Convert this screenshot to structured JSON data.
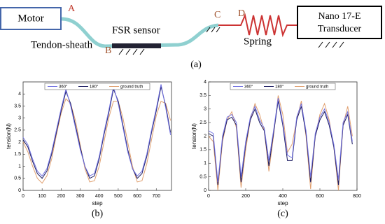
{
  "diagram": {
    "motor": "Motor",
    "label_a": "A",
    "tendon": "Tendon-sheath",
    "fsr": "FSR sensor",
    "label_b": "B",
    "label_c": "C",
    "label_d": "D",
    "spring": "Spring",
    "transducer_1": "Nano 17-E",
    "transducer_2": "Transducer",
    "panel": "(a)"
  },
  "chart_data": [
    {
      "type": "line",
      "panel_label": "(b)",
      "xlabel": "step",
      "ylabel": "tension(N)",
      "legend": "upper center",
      "x": [
        0,
        25,
        50,
        75,
        100,
        125,
        150,
        175,
        200,
        225,
        250,
        275,
        300,
        325,
        350,
        375,
        400,
        425,
        450,
        475,
        500,
        525,
        550,
        575,
        600,
        625,
        650,
        675,
        700,
        725,
        750,
        775
      ],
      "series": [
        {
          "name": "360°",
          "color": "#7070e0",
          "values": [
            2.2,
            1.9,
            1.3,
            0.8,
            0.6,
            0.9,
            1.6,
            2.5,
            3.4,
            4.2,
            3.5,
            2.6,
            1.7,
            1.0,
            0.6,
            0.7,
            1.4,
            2.4,
            3.3,
            4.3,
            3.6,
            2.6,
            1.6,
            0.9,
            0.6,
            0.8,
            1.5,
            2.5,
            3.4,
            4.4,
            3.4,
            2.3
          ]
        },
        {
          "name": "180°",
          "color": "#1a1a60",
          "values": [
            2.1,
            1.8,
            1.2,
            0.7,
            0.5,
            0.8,
            1.5,
            2.4,
            3.3,
            4.1,
            3.6,
            2.7,
            1.8,
            1.0,
            0.5,
            0.6,
            1.3,
            2.3,
            3.2,
            4.2,
            3.7,
            2.7,
            1.7,
            0.9,
            0.5,
            0.7,
            1.4,
            2.4,
            3.3,
            4.3,
            3.5,
            2.4
          ]
        },
        {
          "name": "ground truth",
          "color": "#e0a070",
          "values": [
            2.0,
            1.6,
            1.0,
            0.5,
            0.3,
            0.6,
            1.3,
            2.3,
            3.2,
            3.8,
            3.6,
            2.9,
            1.9,
            0.9,
            0.35,
            0.4,
            1.0,
            2.0,
            3.0,
            3.7,
            3.7,
            3.0,
            2.0,
            1.0,
            0.35,
            0.4,
            1.1,
            2.1,
            3.1,
            3.7,
            3.6,
            2.9
          ]
        }
      ],
      "xlim": [
        0,
        780
      ],
      "ylim": [
        0,
        4.5
      ],
      "xticks": [
        0,
        100,
        200,
        300,
        400,
        500,
        600,
        700
      ],
      "yticks": [
        0,
        0.5,
        1,
        1.5,
        2,
        2.5,
        3,
        3.5,
        4
      ]
    },
    {
      "type": "line",
      "panel_label": "(c)",
      "xlabel": "step",
      "ylabel": "tension(N)",
      "legend": "upper center",
      "x": [
        0,
        25,
        50,
        75,
        100,
        125,
        150,
        175,
        200,
        225,
        250,
        275,
        300,
        325,
        350,
        375,
        400,
        425,
        450,
        475,
        500,
        525,
        550,
        575,
        600,
        625,
        650,
        675,
        700,
        725,
        750,
        775
      ],
      "series": [
        {
          "name": "360°",
          "color": "#7070e0",
          "values": [
            2.2,
            2.1,
            0.3,
            2.0,
            2.7,
            2.8,
            2.5,
            0.5,
            1.8,
            2.7,
            3.1,
            2.6,
            2.3,
            1.1,
            2.2,
            3.4,
            2.5,
            1.3,
            1.2,
            2.7,
            3.2,
            2.2,
            0.5,
            2.1,
            2.7,
            3.0,
            2.5,
            1.7,
            0.4,
            2.5,
            2.9,
            1.8
          ]
        },
        {
          "name": "180°",
          "color": "#1a1a60",
          "values": [
            2.1,
            2.0,
            0.2,
            1.9,
            2.6,
            2.7,
            2.4,
            0.3,
            1.7,
            2.6,
            3.0,
            2.5,
            2.2,
            0.9,
            2.1,
            3.3,
            2.4,
            1.1,
            1.1,
            2.6,
            3.1,
            2.1,
            0.3,
            2.0,
            2.6,
            2.9,
            2.4,
            1.6,
            0.2,
            2.4,
            2.8,
            1.7
          ]
        },
        {
          "name": "ground truth",
          "color": "#e0a070",
          "values": [
            2.0,
            1.8,
            0.0,
            1.8,
            2.6,
            2.9,
            2.3,
            0.1,
            1.5,
            2.6,
            3.2,
            2.8,
            2.2,
            0.7,
            2.0,
            3.5,
            2.8,
            1.4,
            1.7,
            2.6,
            3.3,
            2.0,
            0.05,
            2.0,
            2.8,
            3.2,
            2.6,
            1.6,
            0.0,
            2.4,
            3.1,
            2.0
          ]
        }
      ],
      "xlim": [
        0,
        800
      ],
      "ylim": [
        0,
        4
      ],
      "xticks": [
        0,
        200,
        400,
        600,
        800
      ],
      "yticks": [
        0,
        0.5,
        1,
        1.5,
        2,
        2.5,
        3,
        3.5,
        4
      ]
    }
  ]
}
